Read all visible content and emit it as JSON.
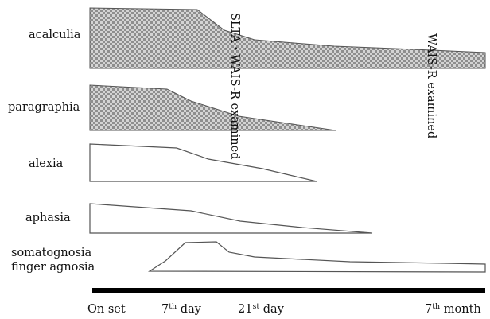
{
  "rows": [
    {
      "key": "acalculia",
      "label": "acalculia",
      "style": "shaded"
    },
    {
      "key": "paragraphia",
      "label": "paragraphia",
      "style": "shaded"
    },
    {
      "key": "alexia",
      "label": "alexia",
      "style": "plain"
    },
    {
      "key": "aphasia",
      "label": "aphasia",
      "style": "plain"
    },
    {
      "key": "somatognosia",
      "label_lines": [
        "somatognosia",
        "finger agnosia"
      ],
      "style": "plain"
    }
  ],
  "annotations": [
    {
      "key": "first",
      "text": "SLTA・WAIS-R examined"
    },
    {
      "key": "second",
      "text": "WAIS-R examined"
    }
  ],
  "timeline": {
    "ticks": [
      {
        "key": "onset",
        "main": "On set",
        "sup": ""
      },
      {
        "key": "day7",
        "main": "7",
        "sup": "th",
        "rest": " day"
      },
      {
        "key": "day21",
        "main": "21",
        "sup": "st",
        "rest": " day"
      },
      {
        "key": "month7",
        "main": "7",
        "sup": "th",
        "rest": " month"
      }
    ]
  },
  "colors": {
    "shade_dark": "#8a8a8a",
    "shade_light": "#d0d0d0",
    "outline": "#555555",
    "axis": "#000000"
  }
}
